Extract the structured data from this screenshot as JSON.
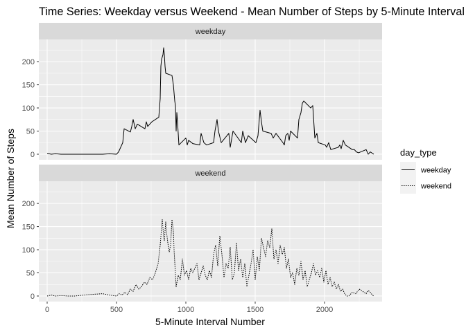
{
  "chart_data": {
    "type": "line",
    "title": "Time Series: Weekday versus Weekend - Mean Number of Steps by 5-Minute Interval",
    "xlabel": "5-Minute Interval Number",
    "ylabel": "Mean Number of Steps",
    "xlim": [
      -60,
      2415
    ],
    "ylim": [
      -12,
      248
    ],
    "x_ticks": [
      0,
      500,
      1000,
      1500,
      2000
    ],
    "y_ticks": [
      0,
      50,
      100,
      150,
      200
    ],
    "grid": true,
    "facet_by": "day_type",
    "legend": {
      "title": "day_type",
      "position": "right",
      "entries": [
        {
          "label": "weekday",
          "linetype": "solid"
        },
        {
          "label": "weekend",
          "linetype": "dotted"
        }
      ]
    },
    "colors": {
      "panel_bg": "#ebebeb",
      "strip_bg": "#d9d9d9",
      "grid": "#ffffff",
      "line": "#000000"
    },
    "panels": [
      {
        "strip": "weekday",
        "linetype": "solid",
        "x": [
          0,
          30,
          60,
          100,
          150,
          200,
          300,
          400,
          450,
          500,
          515,
          530,
          545,
          555,
          600,
          610,
          620,
          635,
          650,
          705,
          715,
          725,
          740,
          755,
          805,
          815,
          820,
          825,
          835,
          840,
          845,
          850,
          855,
          900,
          910,
          920,
          925,
          930,
          935,
          940,
          950,
          1000,
          1010,
          1020,
          1050,
          1100,
          1110,
          1130,
          1150,
          1200,
          1210,
          1225,
          1235,
          1255,
          1310,
          1320,
          1340,
          1400,
          1410,
          1430,
          1450,
          1505,
          1520,
          1535,
          1545,
          1555,
          1615,
          1630,
          1650,
          1700,
          1710,
          1720,
          1735,
          1745,
          1755,
          1805,
          1815,
          1830,
          1840,
          1850,
          1900,
          1915,
          1930,
          1945,
          1955,
          2005,
          2015,
          2030,
          2045,
          2100,
          2110,
          2120,
          2135,
          2150,
          2200,
          2215,
          2230,
          2245,
          2300,
          2315,
          2330,
          2345,
          2355
        ],
        "y": [
          2,
          0,
          1,
          0,
          0,
          0,
          0,
          0,
          1,
          0,
          5,
          15,
          25,
          55,
          48,
          60,
          75,
          55,
          65,
          55,
          70,
          60,
          65,
          70,
          80,
          120,
          190,
          205,
          215,
          230,
          215,
          190,
          175,
          170,
          150,
          115,
          105,
          50,
          90,
          70,
          20,
          35,
          20,
          30,
          23,
          20,
          45,
          25,
          20,
          25,
          50,
          75,
          50,
          25,
          45,
          15,
          50,
          25,
          50,
          25,
          40,
          25,
          40,
          95,
          70,
          50,
          45,
          35,
          45,
          25,
          20,
          40,
          45,
          30,
          50,
          35,
          75,
          90,
          110,
          115,
          100,
          105,
          35,
          45,
          25,
          20,
          15,
          25,
          10,
          15,
          20,
          12,
          30,
          20,
          10,
          10,
          5,
          3,
          10,
          0,
          5,
          2,
          0
        ]
      },
      {
        "strip": "weekend",
        "linetype": "dotted",
        "x": [
          0,
          30,
          60,
          100,
          150,
          200,
          300,
          400,
          450,
          500,
          520,
          540,
          560,
          580,
          600,
          620,
          640,
          660,
          680,
          700,
          720,
          740,
          760,
          780,
          800,
          815,
          830,
          840,
          845,
          855,
          860,
          870,
          880,
          890,
          900,
          910,
          915,
          930,
          945,
          960,
          975,
          990,
          1005,
          1020,
          1035,
          1050,
          1065,
          1080,
          1095,
          1110,
          1125,
          1140,
          1155,
          1170,
          1185,
          1200,
          1215,
          1230,
          1245,
          1260,
          1275,
          1290,
          1305,
          1320,
          1335,
          1350,
          1365,
          1380,
          1395,
          1410,
          1425,
          1440,
          1455,
          1470,
          1485,
          1500,
          1515,
          1530,
          1545,
          1560,
          1575,
          1590,
          1605,
          1620,
          1635,
          1650,
          1665,
          1680,
          1695,
          1710,
          1725,
          1740,
          1755,
          1770,
          1785,
          1800,
          1815,
          1830,
          1845,
          1860,
          1875,
          1890,
          1905,
          1920,
          1935,
          1950,
          1965,
          1980,
          1995,
          2010,
          2025,
          2040,
          2055,
          2070,
          2085,
          2100,
          2115,
          2130,
          2145,
          2160,
          2175,
          2200,
          2225,
          2250,
          2275,
          2300,
          2315,
          2330,
          2345,
          2355
        ],
        "y": [
          0,
          2,
          0,
          1,
          0,
          0,
          3,
          5,
          2,
          0,
          5,
          2,
          8,
          3,
          15,
          10,
          25,
          15,
          20,
          30,
          25,
          40,
          35,
          50,
          70,
          110,
          165,
          130,
          120,
          160,
          140,
          115,
          95,
          110,
          165,
          140,
          100,
          20,
          45,
          35,
          80,
          45,
          55,
          35,
          60,
          50,
          60,
          70,
          35,
          50,
          65,
          45,
          35,
          55,
          40,
          90,
          110,
          65,
          130,
          90,
          40,
          70,
          60,
          105,
          35,
          50,
          115,
          55,
          80,
          40,
          70,
          20,
          45,
          70,
          100,
          35,
          85,
          55,
          125,
          105,
          85,
          120,
          105,
          145,
          80,
          100,
          70,
          110,
          90,
          105,
          60,
          80,
          40,
          50,
          25,
          60,
          45,
          75,
          35,
          55,
          20,
          35,
          50,
          70,
          45,
          55,
          40,
          60,
          30,
          55,
          25,
          40,
          20,
          30,
          15,
          25,
          10,
          15,
          5,
          0,
          0,
          8,
          5,
          15,
          10,
          5,
          12,
          8,
          2,
          0
        ]
      }
    ]
  }
}
